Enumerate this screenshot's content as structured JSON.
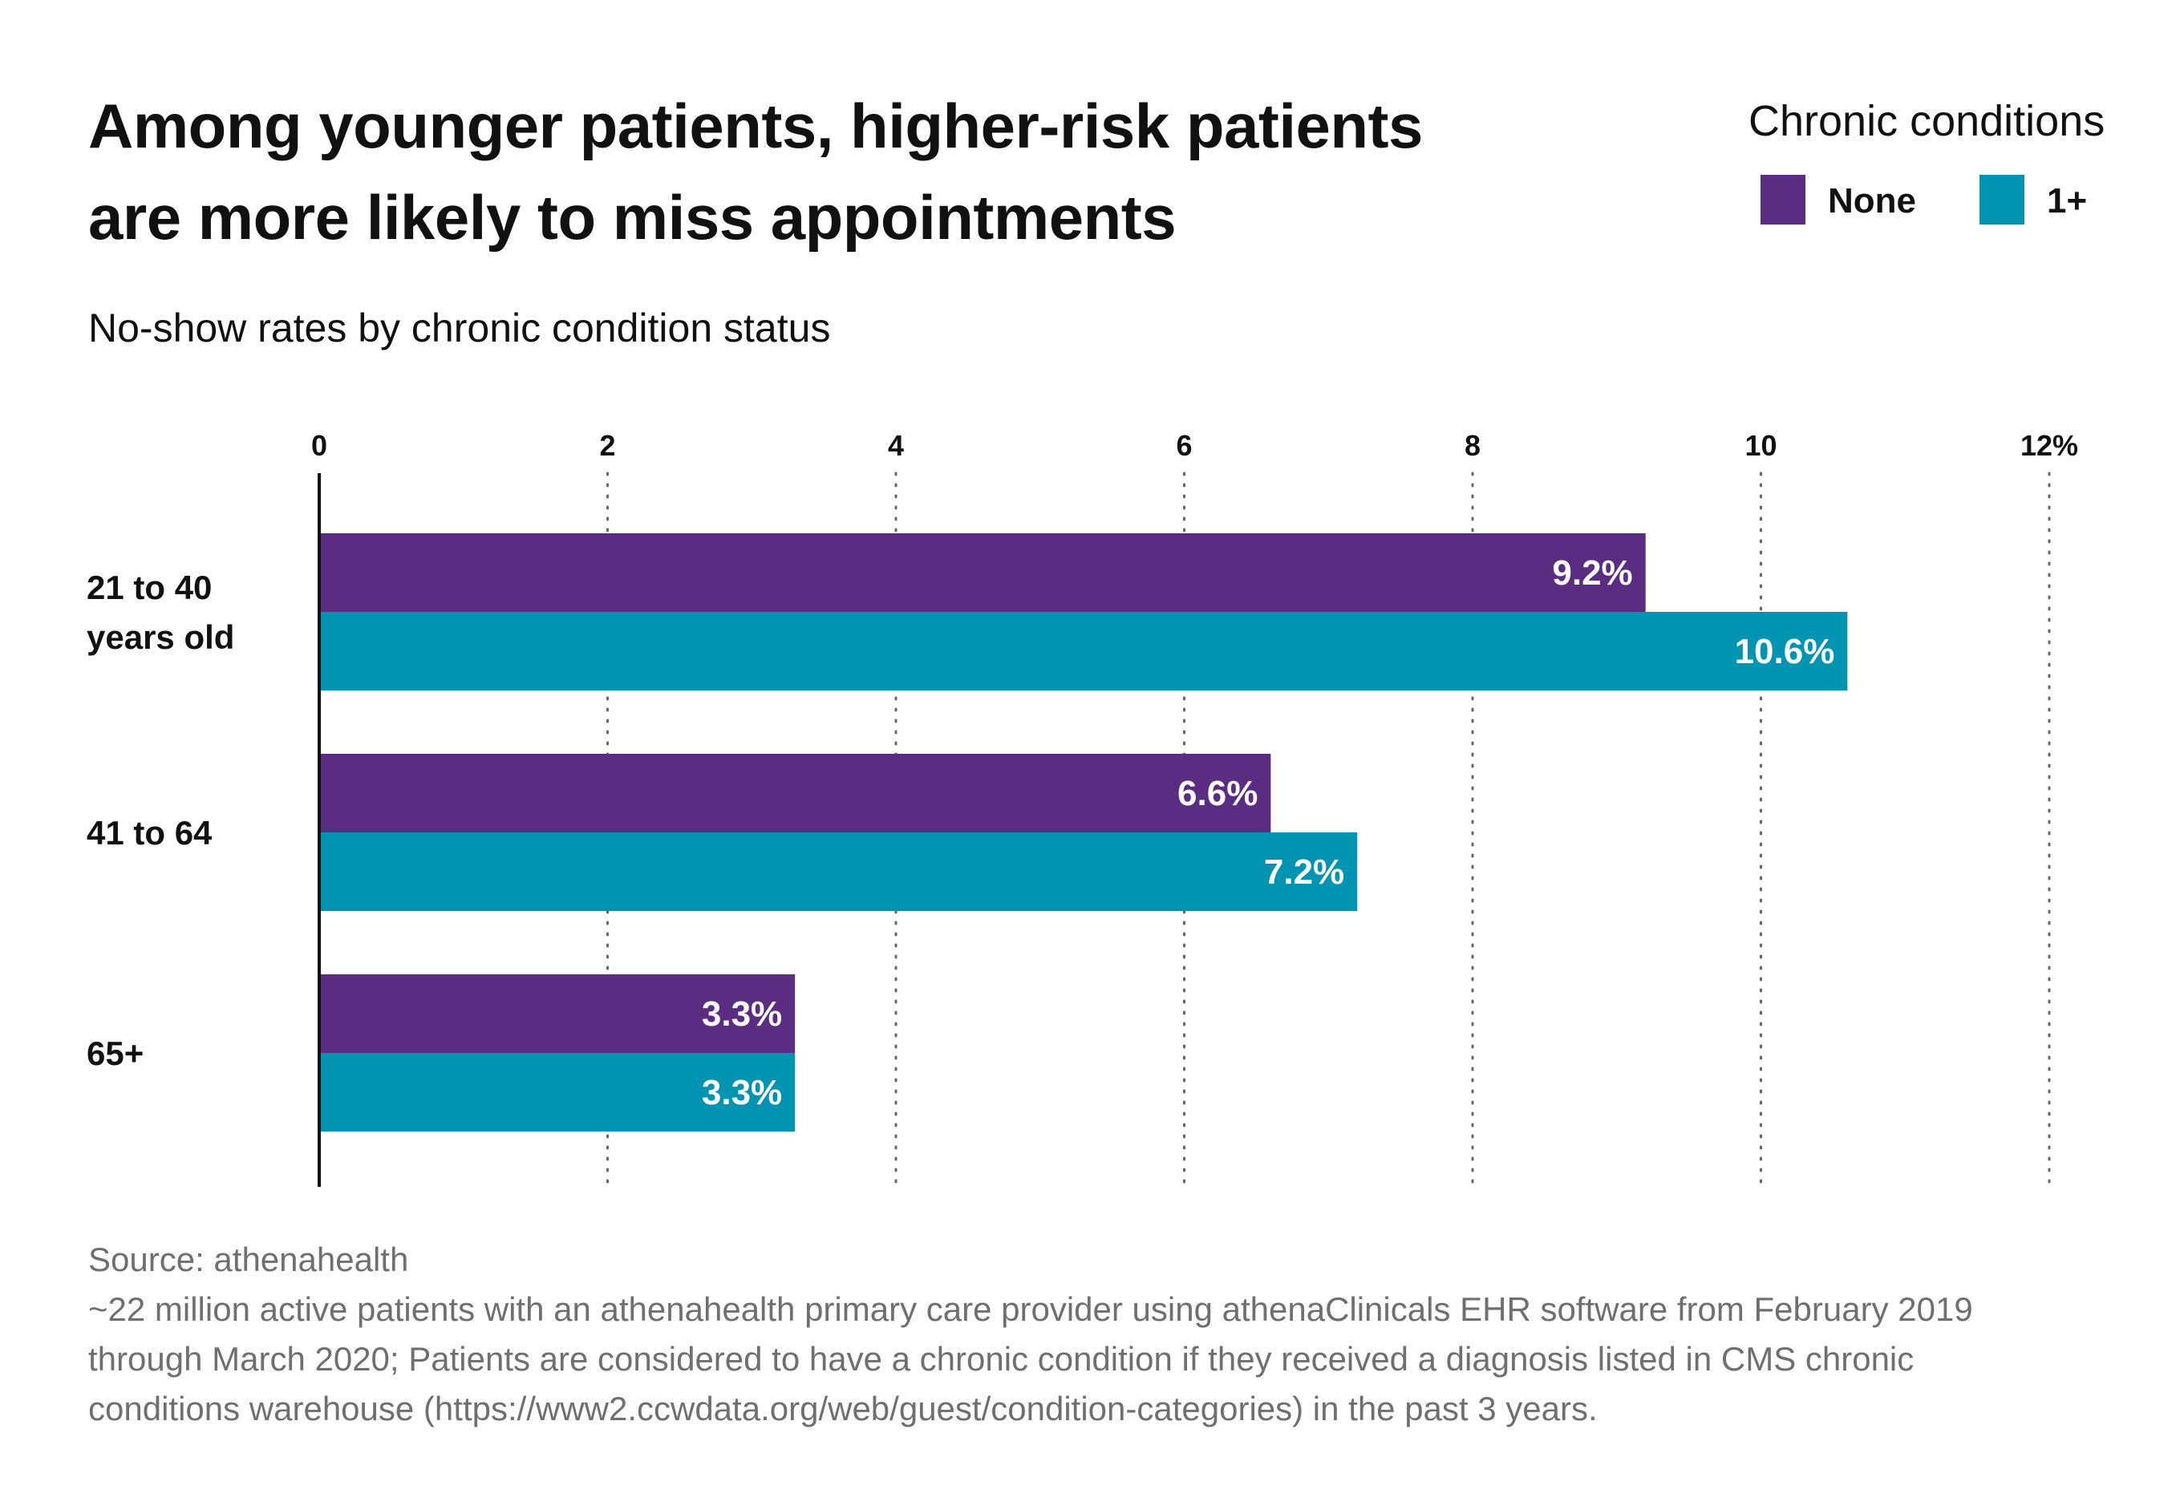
{
  "title_lines": [
    "Among younger patients, higher-risk patients",
    "are more likely to miss appointments"
  ],
  "subtitle": "No-show rates by chronic condition status",
  "legend": {
    "title": "Chronic conditions",
    "items": [
      {
        "label": "None",
        "color": "#5a2d82"
      },
      {
        "label": "1+",
        "color": "#0094b3"
      }
    ]
  },
  "chart_data": {
    "type": "bar",
    "orientation": "horizontal",
    "categories": [
      [
        "21 to 40",
        "years old"
      ],
      [
        "41 to 64"
      ],
      [
        "65+"
      ]
    ],
    "series": [
      {
        "name": "None",
        "color": "#5a2d82",
        "values": [
          9.2,
          6.6,
          3.3
        ],
        "labels": [
          "9.2%",
          "6.6%",
          "3.3%"
        ]
      },
      {
        "name": "1+",
        "color": "#0094b3",
        "values": [
          10.6,
          7.2,
          3.3
        ],
        "labels": [
          "10.6%",
          "7.2%",
          "3.3%"
        ]
      }
    ],
    "xlim": [
      0,
      12
    ],
    "ticks": [
      0,
      2,
      4,
      6,
      8,
      10,
      12
    ],
    "tick_labels": [
      "0",
      "2",
      "4",
      "6",
      "8",
      "10",
      "12%"
    ],
    "grid": "dotted vertical",
    "axis_position": "top",
    "legend_position": "top-right"
  },
  "footer": {
    "source": "Source: athenahealth",
    "note_lines": [
      "~22 million active patients with an athenahealth primary care provider using athenaClinicals EHR software from February 2019",
      "through March 2020; Patients are considered to have a chronic condition if they received a diagnosis listed in CMS chronic",
      "conditions warehouse (https://www2.ccwdata.org/web/guest/condition-categories) in the past 3 years."
    ]
  }
}
